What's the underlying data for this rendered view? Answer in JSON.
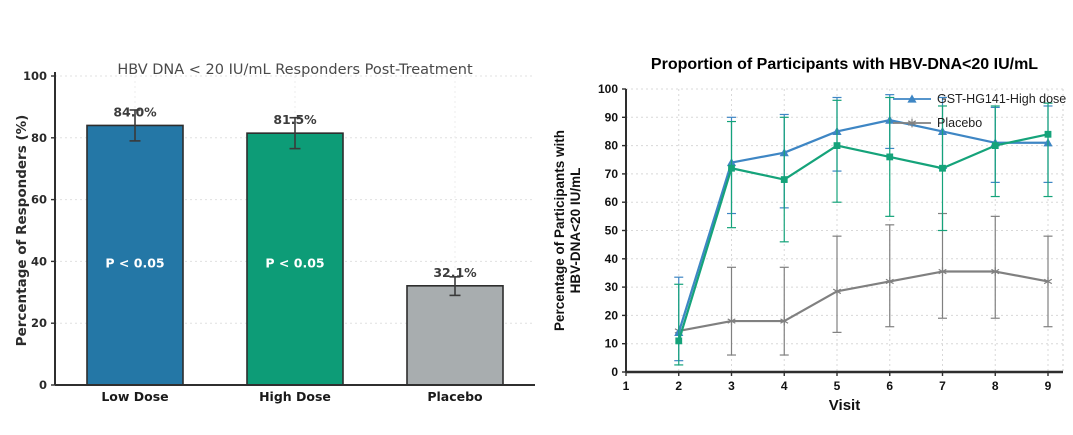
{
  "page": {
    "background": "#ffffff"
  },
  "chart_data": [
    {
      "type": "bar",
      "title": "HBV DNA < 20 IU/mL Responders Post-Treatment",
      "ylabel": "Percentage of Responders (%)",
      "categories": [
        "Low Dose",
        "High Dose",
        "Placebo"
      ],
      "values": [
        84.0,
        81.5,
        32.1
      ],
      "value_labels": [
        "84.0%",
        "81.5%",
        "32.1%"
      ],
      "bar_annotations": [
        "P < 0.05",
        "P < 0.05",
        ""
      ],
      "error_low": [
        79,
        76.5,
        29
      ],
      "error_high": [
        89,
        86.5,
        35
      ],
      "bar_colors": [
        "#2477a6",
        "#0d9c77",
        "#a8adaf"
      ],
      "bar_edge_color": "#2d2d2d",
      "error_color": "#3a3a3a",
      "title_color": "#4a4a4a",
      "ylim": [
        0,
        100
      ],
      "yticks": [
        0,
        20,
        40,
        60,
        80,
        100
      ],
      "grid": true
    },
    {
      "type": "line",
      "title": "Proportion of Participants with HBV-DNA<20 IU/mL",
      "xlabel": "Visit",
      "ylabel_lines": [
        "Percentage of Participants with",
        "HBV-DNA<20 IU/mL"
      ],
      "x": [
        2,
        3,
        4,
        5,
        6,
        7,
        8,
        9
      ],
      "xticks": [
        1,
        2,
        3,
        4,
        5,
        6,
        7,
        8,
        9
      ],
      "xlim": [
        1,
        9
      ],
      "ylim": [
        0,
        100
      ],
      "yticks": [
        0,
        10,
        20,
        30,
        40,
        50,
        60,
        70,
        80,
        90,
        100
      ],
      "grid": true,
      "legend_position": "top-right",
      "legend_entries": [
        "GST-HG141-High dose",
        "Placebo"
      ],
      "series": [
        {
          "name": "Placebo",
          "color": "#808080",
          "marker": "star",
          "in_legend": true,
          "values": [
            14.5,
            18,
            18,
            28.5,
            32,
            35.5,
            35.5,
            32
          ],
          "err_low": [
            14.5,
            6,
            6,
            14,
            16,
            19,
            19,
            16
          ],
          "err_high": [
            14.5,
            37,
            37,
            48,
            52,
            56,
            55,
            48
          ]
        },
        {
          "name": "GST-HG141-High dose",
          "color": "#3e86c4",
          "marker": "triangle",
          "in_legend": true,
          "values": [
            14,
            74,
            77.5,
            85,
            89,
            85,
            81,
            81
          ],
          "err_low": [
            4,
            56,
            58,
            71,
            79,
            72,
            67,
            67
          ],
          "err_high": [
            33.5,
            90,
            91,
            97,
            98,
            97,
            93.5,
            94
          ]
        },
        {
          "name": "",
          "color": "#15a37a",
          "marker": "square",
          "in_legend": false,
          "values": [
            11,
            72,
            68,
            80,
            76,
            72,
            80,
            84
          ],
          "err_low": [
            2.5,
            51,
            46,
            60,
            55,
            50,
            62,
            62
          ],
          "err_high": [
            31,
            88.5,
            90,
            96,
            97,
            94,
            94,
            95
          ]
        }
      ]
    }
  ]
}
